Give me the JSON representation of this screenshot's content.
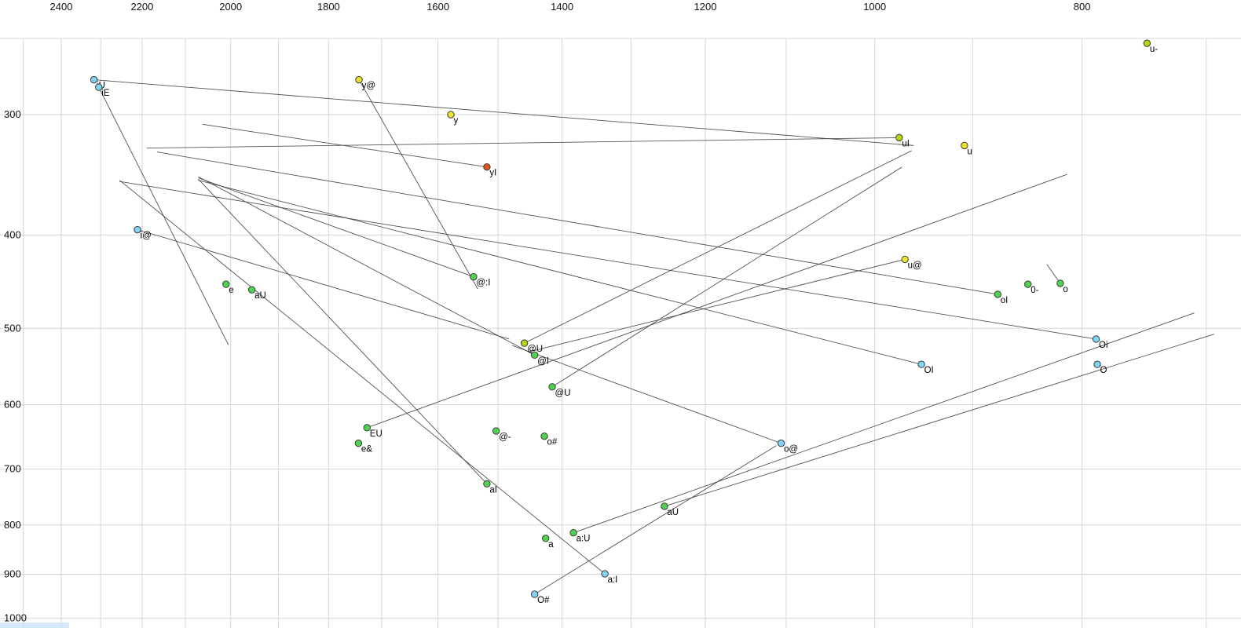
{
  "chart_data": {
    "type": "scatter",
    "title": "",
    "description": "Vowel formant chart (F2 horizontal, reversed log scale; F1 vertical, log scale) with diphthong trajectory lines",
    "x_axis": {
      "label": "",
      "tick_labels": [
        2400,
        2200,
        2000,
        1800,
        1600,
        1400,
        1200,
        1000,
        800
      ],
      "grid_from": 2500,
      "grid_to": 700,
      "grid_step": 100,
      "scale": "log",
      "reversed": true,
      "range": [
        2565,
        673
      ]
    },
    "y_axis": {
      "label": "",
      "tick_labels": [
        300,
        400,
        500,
        600,
        700,
        800,
        900,
        1000
      ],
      "grid_values": [
        250,
        300,
        400,
        500,
        600,
        700,
        800,
        900,
        1000
      ],
      "scale": "log",
      "range": [
        246,
        1023
      ]
    },
    "legend": "none",
    "grid": true,
    "points": [
      {
        "label": "u-",
        "f2": 746,
        "f1": 253,
        "color": "lime"
      },
      {
        "label": "iU",
        "f2": 2317,
        "f1": 276,
        "color": "blue"
      },
      {
        "label": "iE",
        "f2": 2305,
        "f1": 281,
        "color": "blue"
      },
      {
        "label": "y@",
        "f2": 1742,
        "f1": 276,
        "color": "yellow"
      },
      {
        "label": "y",
        "f2": 1578,
        "f1": 300,
        "color": "yellow"
      },
      {
        "label": "uI",
        "f2": 974,
        "f1": 317,
        "color": "lime"
      },
      {
        "label": "u",
        "f2": 908,
        "f1": 323,
        "color": "yellow"
      },
      {
        "label": "yI",
        "f2": 1518,
        "f1": 340,
        "color": "red"
      },
      {
        "label": "i@",
        "f2": 2211,
        "f1": 395,
        "color": "blue"
      },
      {
        "label": "u@",
        "f2": 968,
        "f1": 424,
        "color": "yellow"
      },
      {
        "label": "0-",
        "f2": 848,
        "f1": 450,
        "color": "green"
      },
      {
        "label": "o",
        "f2": 819,
        "f1": 449,
        "color": "green"
      },
      {
        "label": "oI",
        "f2": 876,
        "f1": 461,
        "color": "green"
      },
      {
        "label": "e",
        "f2": 2010,
        "f1": 450,
        "color": "green"
      },
      {
        "label": "aU",
        "f2": 1955,
        "f1": 456,
        "color": "green"
      },
      {
        "label": "@:I",
        "f2": 1540,
        "f1": 442,
        "color": "green"
      },
      {
        "label": "@U",
        "f2": 1458,
        "f1": 518,
        "color": "lime"
      },
      {
        "label": "@I",
        "f2": 1442,
        "f1": 533,
        "color": "green"
      },
      {
        "label": "@U",
        "f2": 1415,
        "f1": 575,
        "color": "green"
      },
      {
        "label": "Oi",
        "f2": 788,
        "f1": 513,
        "color": "blue"
      },
      {
        "label": "OI",
        "f2": 951,
        "f1": 545,
        "color": "blue"
      },
      {
        "label": "O",
        "f2": 787,
        "f1": 545,
        "color": "blue"
      },
      {
        "label": "EU",
        "f2": 1727,
        "f1": 634,
        "color": "green"
      },
      {
        "label": "e&",
        "f2": 1743,
        "f1": 658,
        "color": "green"
      },
      {
        "label": "@-",
        "f2": 1503,
        "f1": 639,
        "color": "green"
      },
      {
        "label": "o#",
        "f2": 1427,
        "f1": 647,
        "color": "green"
      },
      {
        "label": "o@",
        "f2": 1106,
        "f1": 658,
        "color": "blue"
      },
      {
        "label": "aI",
        "f2": 1518,
        "f1": 725,
        "color": "green"
      },
      {
        "label": "O#",
        "f2": 1442,
        "f1": 944,
        "color": "blue"
      },
      {
        "label": "aU",
        "f2": 1254,
        "f1": 765,
        "color": "green"
      },
      {
        "label": "a",
        "f2": 1425,
        "f1": 826,
        "color": "green"
      },
      {
        "label": "a:U",
        "f2": 1383,
        "f1": 815,
        "color": "green"
      },
      {
        "label": "a:I",
        "f2": 1337,
        "f1": 899,
        "color": "blue"
      }
    ],
    "trajectories": [
      {
        "name": "iU-glide",
        "from": [
          2317,
          276
        ],
        "to": [
          959,
          323
        ]
      },
      {
        "name": "uI-glide",
        "from": [
          974,
          317
        ],
        "to": [
          2189,
          325
        ]
      },
      {
        "name": "y@-glide",
        "from": [
          1742,
          276
        ],
        "to": [
          1533,
          455
        ]
      },
      {
        "name": "i@-glide",
        "from": [
          2211,
          395
        ],
        "to": [
          1482,
          513
        ]
      },
      {
        "name": "u@-glide",
        "from": [
          968,
          424
        ],
        "to": [
          1452,
          529
        ]
      },
      {
        "name": "oI-glide",
        "from": [
          876,
          461
        ],
        "to": [
          2165,
          328
        ]
      },
      {
        "name": "Oi-glide",
        "from": [
          788,
          513
        ],
        "to": [
          2254,
          352
        ]
      },
      {
        "name": "OI-glide",
        "from": [
          951,
          545
        ],
        "to": [
          2071,
          351
        ]
      },
      {
        "name": "aI-glide",
        "from": [
          1518,
          725
        ],
        "to": [
          2071,
          350
        ]
      },
      {
        "name": "a:I-glide",
        "from": [
          1337,
          899
        ],
        "to": [
          2254,
          351
        ]
      },
      {
        "name": "yI-glide",
        "from": [
          1518,
          340
        ],
        "to": [
          2062,
          307
        ]
      },
      {
        "name": "iE-glide",
        "from": [
          2305,
          281
        ],
        "to": [
          2005,
          520
        ]
      },
      {
        "name": "@:I-glide",
        "from": [
          1540,
          442
        ],
        "to": [
          2071,
          349
        ]
      },
      {
        "name": "@I-glide",
        "from": [
          1442,
          533
        ],
        "to": [
          2071,
          348
        ]
      },
      {
        "name": "@U-glide",
        "from": [
          1458,
          518
        ],
        "to": [
          961,
          327
        ]
      },
      {
        "name": "@U2-glide",
        "from": [
          1415,
          575
        ],
        "to": [
          971,
          340
        ]
      },
      {
        "name": "EU-glide",
        "from": [
          1727,
          634
        ],
        "to": [
          813,
          346
        ]
      },
      {
        "name": "o@-glide",
        "from": [
          1106,
          658
        ],
        "to": [
          1477,
          521
        ]
      },
      {
        "name": "O#-glide",
        "from": [
          1442,
          944
        ],
        "to": [
          1112,
          662
        ]
      },
      {
        "name": "aU-glide",
        "from": [
          1254,
          765
        ],
        "to": [
          694,
          507
        ]
      },
      {
        "name": "a:U-glide",
        "from": [
          1383,
          815
        ],
        "to": [
          709,
          482
        ]
      },
      {
        "name": "o-glide",
        "from": [
          831,
          429
        ],
        "to": [
          819,
          449
        ]
      }
    ],
    "palette": {
      "green": "#4fd24f",
      "lime": "#b9d414",
      "yellow": "#ece32e",
      "blue": "#83d3f5",
      "red": "#e0541e",
      "outline": "#3c3c3c",
      "grid": "#d6d6d6",
      "line": "#3f3f3f",
      "tick_text": "#111111",
      "point_text": "#000000",
      "strip": "#cfe3f8"
    }
  }
}
